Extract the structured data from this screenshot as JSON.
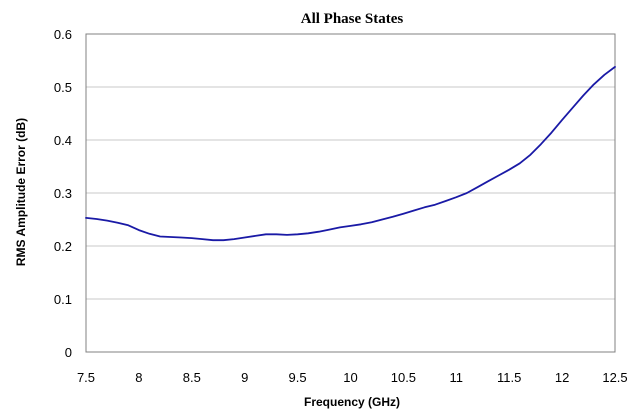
{
  "chart_data": {
    "type": "line",
    "title": "All Phase States",
    "xlabel": "Frequency (GHz)",
    "ylabel": "RMS Amplitude Error (dB)",
    "xlim": [
      7.5,
      12.5
    ],
    "ylim": [
      0,
      0.6
    ],
    "x_ticks": [
      "7.5",
      "8",
      "8.5",
      "9",
      "9.5",
      "10",
      "10.5",
      "11",
      "11.5",
      "12",
      "12.5"
    ],
    "y_ticks": [
      "0",
      "0.1",
      "0.2",
      "0.3",
      "0.4",
      "0.5",
      "0.6"
    ],
    "x_tick_values": [
      7.5,
      8,
      8.5,
      9,
      9.5,
      10,
      10.5,
      11,
      11.5,
      12,
      12.5
    ],
    "y_tick_values": [
      0,
      0.1,
      0.2,
      0.3,
      0.4,
      0.5,
      0.6
    ],
    "grid": "horizontal",
    "legend": "none",
    "series": [
      {
        "color": "#1a1aa6",
        "x": [
          7.5,
          7.6,
          7.7,
          7.8,
          7.9,
          8.0,
          8.1,
          8.2,
          8.3,
          8.4,
          8.5,
          8.6,
          8.7,
          8.8,
          8.9,
          9.0,
          9.1,
          9.2,
          9.3,
          9.4,
          9.5,
          9.6,
          9.7,
          9.8,
          9.9,
          10.0,
          10.1,
          10.2,
          10.3,
          10.4,
          10.5,
          10.6,
          10.7,
          10.8,
          10.9,
          11.0,
          11.1,
          11.2,
          11.3,
          11.4,
          11.5,
          11.6,
          11.7,
          11.8,
          11.9,
          12.0,
          12.1,
          12.2,
          12.3,
          12.4,
          12.5
        ],
        "y": [
          0.253,
          0.251,
          0.248,
          0.244,
          0.239,
          0.23,
          0.223,
          0.218,
          0.217,
          0.216,
          0.215,
          0.213,
          0.211,
          0.211,
          0.213,
          0.216,
          0.219,
          0.222,
          0.222,
          0.221,
          0.222,
          0.224,
          0.227,
          0.231,
          0.235,
          0.238,
          0.241,
          0.245,
          0.25,
          0.255,
          0.261,
          0.267,
          0.273,
          0.278,
          0.285,
          0.292,
          0.3,
          0.311,
          0.322,
          0.333,
          0.344,
          0.356,
          0.372,
          0.392,
          0.414,
          0.438,
          0.461,
          0.484,
          0.505,
          0.523,
          0.538
        ]
      }
    ]
  }
}
